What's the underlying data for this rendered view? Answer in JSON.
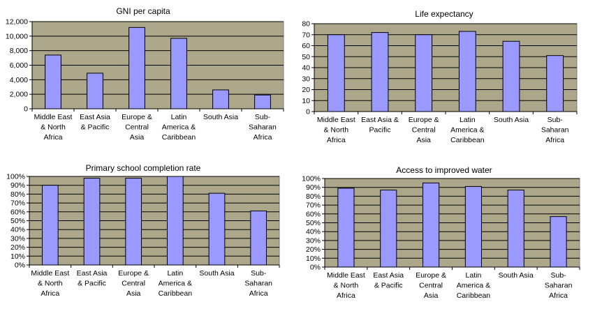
{
  "chart_data": [
    {
      "type": "bar",
      "title": "GNI per capita",
      "categories": [
        [
          "Middle East",
          "& North",
          "Africa"
        ],
        [
          "East Asia",
          "& Pacific"
        ],
        [
          "Europe &",
          "Central",
          "Asia"
        ],
        [
          "Latin",
          "America &",
          "Caribbean"
        ],
        [
          "South Asia"
        ],
        [
          "Sub-",
          "Saharan",
          "Africa"
        ]
      ],
      "values": [
        7400,
        4900,
        11200,
        9700,
        2600,
        1900
      ],
      "yticks": [
        "0",
        "2,000",
        "4,000",
        "6,000",
        "8,000",
        "10,000",
        "12,000"
      ],
      "ylim": [
        0,
        12000
      ],
      "xlabel": "",
      "ylabel": "",
      "grid": true,
      "colors": {
        "plot_bg": "#aca68a",
        "bar": "#9999ff",
        "stroke": "#000000"
      }
    },
    {
      "type": "bar",
      "title": "Life expectancy",
      "categories": [
        [
          "Middle East",
          "& North",
          "Africa"
        ],
        [
          "East Asia &",
          "Pacific"
        ],
        [
          "Europe &",
          "Central",
          "Asia"
        ],
        [
          "Latin",
          "America &",
          "Caribbean"
        ],
        [
          "South Asia"
        ],
        [
          "Sub-",
          "Saharan",
          "Africa"
        ]
      ],
      "values": [
        70,
        72,
        70,
        73,
        64,
        51
      ],
      "yticks": [
        "0",
        "10",
        "20",
        "30",
        "40",
        "50",
        "60",
        "70",
        "80"
      ],
      "ylim": [
        0,
        80
      ],
      "xlabel": "",
      "ylabel": "",
      "grid": true,
      "colors": {
        "plot_bg": "#aca68a",
        "bar": "#9999ff",
        "stroke": "#000000"
      }
    },
    {
      "type": "bar",
      "title": "Primary school completion rate",
      "categories": [
        [
          "Middle East",
          "& North",
          "Africa"
        ],
        [
          "East Asia",
          "& Pacific"
        ],
        [
          "Europe &",
          "Central",
          "Asia"
        ],
        [
          "Latin",
          "America &",
          "Caribbean"
        ],
        [
          "South Asia"
        ],
        [
          "Sub-",
          "Saharan",
          "Africa"
        ]
      ],
      "values": [
        90,
        98,
        98,
        100,
        81,
        61
      ],
      "yticks": [
        "0%",
        "10%",
        "20%",
        "30%",
        "40%",
        "50%",
        "60%",
        "70%",
        "80%",
        "90%",
        "100%"
      ],
      "ylim": [
        0,
        100
      ],
      "xlabel": "",
      "ylabel": "",
      "grid": true,
      "colors": {
        "plot_bg": "#aca68a",
        "bar": "#9999ff",
        "stroke": "#000000"
      }
    },
    {
      "type": "bar",
      "title": "Access to improved water",
      "categories": [
        [
          "Middle East",
          "& North",
          "Africa"
        ],
        [
          "East Asia",
          "& Pacific"
        ],
        [
          "Europe &",
          "Central",
          "Asia"
        ],
        [
          "Latin",
          "America &",
          "Caribbean"
        ],
        [
          "South Asia"
        ],
        [
          "Sub-",
          "Saharan",
          "Africa"
        ]
      ],
      "values": [
        89,
        87,
        95,
        91,
        87,
        57
      ],
      "yticks": [
        "0%",
        "10%",
        "20%",
        "30%",
        "40%",
        "50%",
        "60%",
        "70%",
        "80%",
        "90%",
        "100%"
      ],
      "ylim": [
        0,
        100
      ],
      "xlabel": "",
      "ylabel": "",
      "grid": true,
      "colors": {
        "plot_bg": "#aca68a",
        "bar": "#9999ff",
        "stroke": "#000000"
      }
    }
  ]
}
